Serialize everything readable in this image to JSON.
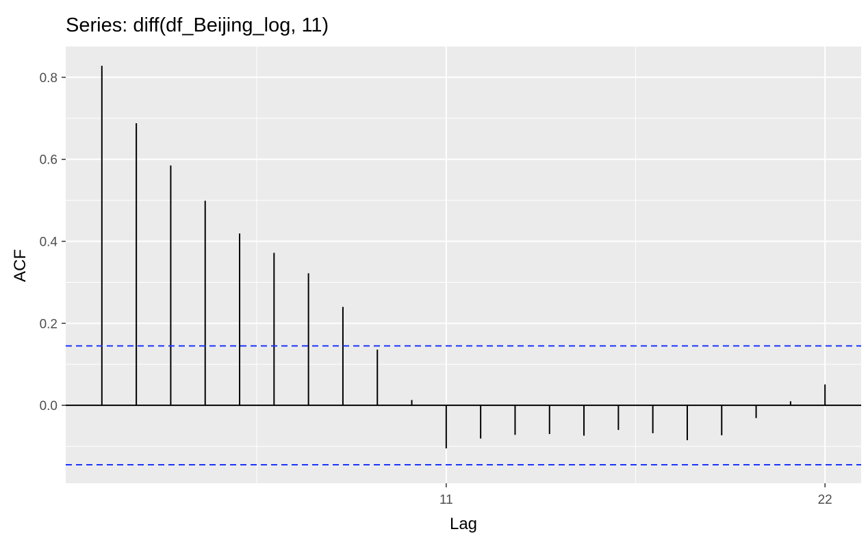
{
  "chart_data": {
    "type": "bar",
    "title": "Series: diff(df_Beijing_log, 11)",
    "xlabel": "Lag",
    "ylabel": "ACF",
    "lags": [
      1,
      2,
      3,
      4,
      5,
      6,
      7,
      8,
      9,
      10,
      11,
      12,
      13,
      14,
      15,
      16,
      17,
      18,
      19,
      20,
      21,
      22
    ],
    "values": [
      0.828,
      0.688,
      0.585,
      0.499,
      0.419,
      0.372,
      0.322,
      0.24,
      0.136,
      0.013,
      -0.105,
      -0.081,
      -0.072,
      -0.07,
      -0.074,
      -0.06,
      -0.068,
      -0.085,
      -0.073,
      -0.031,
      0.01,
      0.051
    ],
    "conf_limit": 0.145,
    "x_ticks": [
      11,
      22
    ],
    "x_tick_labels": [
      "11",
      "22"
    ],
    "y_ticks": [
      0.0,
      0.2,
      0.4,
      0.6,
      0.8
    ],
    "y_tick_labels": [
      "0.0",
      "0.2",
      "0.4",
      "0.6",
      "0.8"
    ],
    "xlim": [
      -0.05,
      23.05
    ],
    "ylim": [
      -0.19,
      0.875
    ],
    "grid": true,
    "legend": "none",
    "colors": {
      "panel": "#ebebeb",
      "grid": "#ffffff",
      "bar": "#000000",
      "conf_line": "#1a33ff",
      "zero_line": "#000000"
    }
  }
}
